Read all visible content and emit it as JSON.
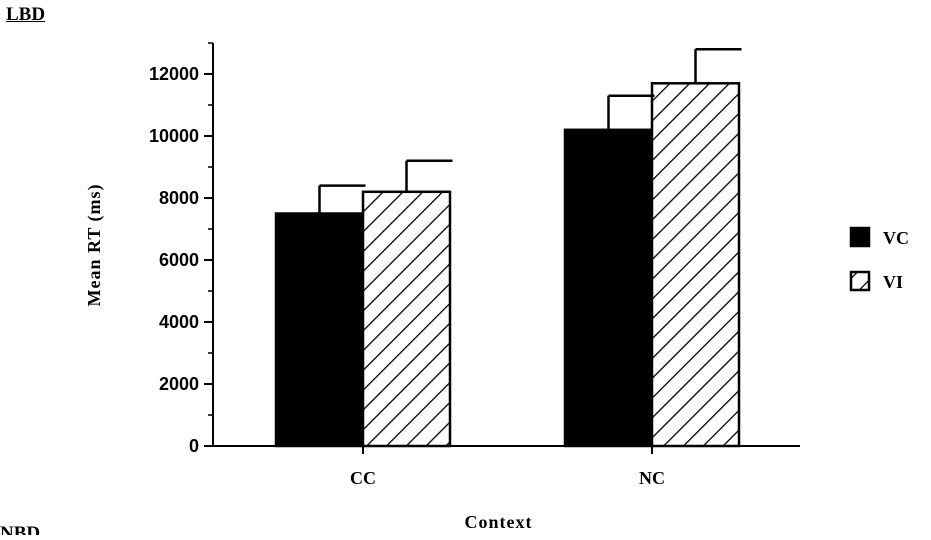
{
  "panel_label": "LBD",
  "next_panel_label": "NBD",
  "chart_data": {
    "type": "bar",
    "categories": [
      "CC",
      "NC"
    ],
    "series": [
      {
        "name": "VC",
        "values": [
          7500,
          10200
        ],
        "errors": [
          900,
          1100
        ],
        "fill": "#000000",
        "pattern": "solid"
      },
      {
        "name": "VI",
        "values": [
          8200,
          11700
        ],
        "errors": [
          1000,
          1100
        ],
        "fill": "#ffffff",
        "pattern": "diagonal-hatch"
      }
    ],
    "xlabel": "Context",
    "ylabel": "Mean RT (ms)",
    "ylim": [
      0,
      13000
    ],
    "yticks": [
      0,
      2000,
      4000,
      6000,
      8000,
      10000,
      12000
    ],
    "ytick_labels": [
      "0",
      "2000",
      "4000",
      "6000",
      "8000",
      "10000",
      "12000"
    ],
    "minor_tick_step": 1000,
    "grid": false,
    "legend_position": "right"
  }
}
